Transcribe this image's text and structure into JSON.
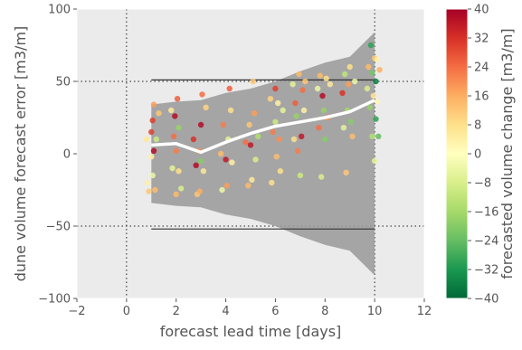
{
  "chart_data": {
    "type": "scatter",
    "title": "",
    "xlabel": "forecast lead time [days]",
    "ylabel": "dune volume forecast error [m3/m]",
    "xlim": [
      -2,
      12
    ],
    "ylim": [
      -100,
      100
    ],
    "xticks": [
      -2,
      0,
      2,
      4,
      6,
      8,
      10,
      12
    ],
    "xtick_labels": [
      "−2",
      "0",
      "2",
      "4",
      "6",
      "8",
      "10",
      "12"
    ],
    "yticks": [
      -100,
      -50,
      0,
      50,
      100
    ],
    "ytick_labels": [
      "−100",
      "−50",
      "0",
      "50",
      "100"
    ],
    "grid": "dotted lines at x=0, x=10, y=-50, y=50",
    "background": "#ebebeb",
    "band": {
      "name": "",
      "color": "#999999",
      "x": [
        1,
        2,
        3,
        4,
        5,
        6,
        7,
        8,
        9,
        10
      ],
      "upper": [
        34,
        36,
        37,
        42,
        45,
        50,
        57,
        63,
        67,
        84
      ],
      "lower": [
        -34,
        -36,
        -37,
        -42,
        -45,
        -50,
        -57,
        -63,
        -67,
        -84
      ]
    },
    "mean_line": {
      "name": "",
      "color": "#ffffff",
      "x": [
        1,
        2,
        3,
        4,
        5,
        6,
        7,
        8,
        9,
        10
      ],
      "y": [
        6,
        7,
        1,
        8,
        14,
        19,
        22,
        25,
        29,
        37
      ]
    },
    "hlines": [
      {
        "y": 51,
        "x_range": [
          1,
          10
        ],
        "color": "#333333"
      },
      {
        "y": -52,
        "x_range": [
          1,
          10
        ],
        "color": "#333333"
      }
    ],
    "points": [
      {
        "x": 0.8,
        "y": 10,
        "c": 6
      },
      {
        "x": 0.85,
        "y": -20,
        "c": 4
      },
      {
        "x": 0.9,
        "y": -26,
        "c": 12
      },
      {
        "x": 1.0,
        "y": 15,
        "c": 30
      },
      {
        "x": 1.0,
        "y": -2,
        "c": 4
      },
      {
        "x": 1.05,
        "y": 23,
        "c": 30
      },
      {
        "x": 1.05,
        "y": -15,
        "c": -4
      },
      {
        "x": 1.1,
        "y": 34,
        "c": 18
      },
      {
        "x": 1.1,
        "y": 2,
        "c": 38
      },
      {
        "x": 1.15,
        "y": -25,
        "c": 14
      },
      {
        "x": 1.2,
        "y": 10,
        "c": -10
      },
      {
        "x": 1.3,
        "y": 28,
        "c": 12
      },
      {
        "x": 1.8,
        "y": 30,
        "c": 6
      },
      {
        "x": 1.85,
        "y": -10,
        "c": -6
      },
      {
        "x": 1.9,
        "y": 12,
        "c": 24
      },
      {
        "x": 1.95,
        "y": 26,
        "c": 38
      },
      {
        "x": 2.0,
        "y": 2,
        "c": 22
      },
      {
        "x": 2.0,
        "y": -28,
        "c": 14
      },
      {
        "x": 2.05,
        "y": 38,
        "c": 26
      },
      {
        "x": 2.1,
        "y": -12,
        "c": 8
      },
      {
        "x": 2.1,
        "y": 18,
        "c": -18
      },
      {
        "x": 2.2,
        "y": -24,
        "c": -8
      },
      {
        "x": 2.7,
        "y": 10,
        "c": 32
      },
      {
        "x": 2.8,
        "y": -8,
        "c": 38
      },
      {
        "x": 2.85,
        "y": -28,
        "c": 12
      },
      {
        "x": 2.9,
        "y": 2,
        "c": 20
      },
      {
        "x": 2.95,
        "y": -26,
        "c": 16
      },
      {
        "x": 3.0,
        "y": 20,
        "c": 38
      },
      {
        "x": 3.0,
        "y": -5,
        "c": -20
      },
      {
        "x": 3.05,
        "y": 41,
        "c": 24
      },
      {
        "x": 3.1,
        "y": -12,
        "c": 6
      },
      {
        "x": 3.2,
        "y": 32,
        "c": 10
      },
      {
        "x": 3.8,
        "y": 0,
        "c": 14
      },
      {
        "x": 3.85,
        "y": -25,
        "c": -4
      },
      {
        "x": 3.9,
        "y": 20,
        "c": 22
      },
      {
        "x": 4.0,
        "y": -4,
        "c": 36
      },
      {
        "x": 4.05,
        "y": -22,
        "c": 18
      },
      {
        "x": 4.1,
        "y": 10,
        "c": -6
      },
      {
        "x": 4.15,
        "y": 45,
        "c": 26
      },
      {
        "x": 4.2,
        "y": 30,
        "c": 8
      },
      {
        "x": 4.25,
        "y": -6,
        "c": 4
      },
      {
        "x": 4.8,
        "y": 8,
        "c": 24
      },
      {
        "x": 4.9,
        "y": -22,
        "c": 14
      },
      {
        "x": 4.95,
        "y": 20,
        "c": 12
      },
      {
        "x": 5.0,
        "y": 6,
        "c": 36
      },
      {
        "x": 5.05,
        "y": -18,
        "c": 6
      },
      {
        "x": 5.1,
        "y": 50,
        "c": 12
      },
      {
        "x": 5.15,
        "y": 28,
        "c": 18
      },
      {
        "x": 5.2,
        "y": -4,
        "c": -8
      },
      {
        "x": 5.3,
        "y": 12,
        "c": -14
      },
      {
        "x": 5.8,
        "y": 38,
        "c": 10
      },
      {
        "x": 5.85,
        "y": -20,
        "c": 8
      },
      {
        "x": 5.9,
        "y": 15,
        "c": 22
      },
      {
        "x": 6.0,
        "y": 22,
        "c": -10
      },
      {
        "x": 6.0,
        "y": 45,
        "c": 30
      },
      {
        "x": 6.05,
        "y": -2,
        "c": 14
      },
      {
        "x": 6.1,
        "y": 35,
        "c": 4
      },
      {
        "x": 6.15,
        "y": 10,
        "c": 20
      },
      {
        "x": 6.2,
        "y": -12,
        "c": 8
      },
      {
        "x": 6.3,
        "y": 30,
        "c": -6
      },
      {
        "x": 6.7,
        "y": 48,
        "c": -6
      },
      {
        "x": 6.75,
        "y": 10,
        "c": 8
      },
      {
        "x": 6.8,
        "y": 35,
        "c": 26
      },
      {
        "x": 6.85,
        "y": 26,
        "c": -18
      },
      {
        "x": 6.9,
        "y": 2,
        "c": 22
      },
      {
        "x": 6.95,
        "y": 55,
        "c": 14
      },
      {
        "x": 7.0,
        "y": -15,
        "c": -10
      },
      {
        "x": 7.05,
        "y": 12,
        "c": 36
      },
      {
        "x": 7.1,
        "y": 44,
        "c": 24
      },
      {
        "x": 7.15,
        "y": 30,
        "c": 4
      },
      {
        "x": 7.2,
        "y": 50,
        "c": 12
      },
      {
        "x": 7.7,
        "y": 45,
        "c": -4
      },
      {
        "x": 7.75,
        "y": 18,
        "c": 24
      },
      {
        "x": 7.8,
        "y": 54,
        "c": 14
      },
      {
        "x": 7.85,
        "y": -16,
        "c": -8
      },
      {
        "x": 7.9,
        "y": 40,
        "c": 38
      },
      {
        "x": 7.95,
        "y": 30,
        "c": -18
      },
      {
        "x": 8.0,
        "y": 10,
        "c": -20
      },
      {
        "x": 8.05,
        "y": 52,
        "c": 8
      },
      {
        "x": 8.1,
        "y": 25,
        "c": 20
      },
      {
        "x": 8.2,
        "y": 48,
        "c": 6
      },
      {
        "x": 8.7,
        "y": 42,
        "c": 32
      },
      {
        "x": 8.75,
        "y": 18,
        "c": -6
      },
      {
        "x": 8.8,
        "y": 55,
        "c": -12
      },
      {
        "x": 8.85,
        "y": -13,
        "c": 12
      },
      {
        "x": 8.9,
        "y": 30,
        "c": -16
      },
      {
        "x": 8.95,
        "y": 48,
        "c": 18
      },
      {
        "x": 9.0,
        "y": 60,
        "c": 8
      },
      {
        "x": 9.05,
        "y": 22,
        "c": -20
      },
      {
        "x": 9.1,
        "y": 12,
        "c": 14
      },
      {
        "x": 9.2,
        "y": 50,
        "c": -4
      },
      {
        "x": 9.7,
        "y": 45,
        "c": -8
      },
      {
        "x": 9.75,
        "y": 60,
        "c": 14
      },
      {
        "x": 9.8,
        "y": 32,
        "c": -18
      },
      {
        "x": 9.85,
        "y": 75,
        "c": -30
      },
      {
        "x": 9.9,
        "y": 12,
        "c": -14
      },
      {
        "x": 9.9,
        "y": 56,
        "c": -22
      },
      {
        "x": 9.95,
        "y": 40,
        "c": 6
      },
      {
        "x": 10.0,
        "y": -5,
        "c": -6
      },
      {
        "x": 10.0,
        "y": 66,
        "c": 12
      },
      {
        "x": 10.05,
        "y": 24,
        "c": -30
      },
      {
        "x": 10.05,
        "y": 50,
        "c": -36
      },
      {
        "x": 10.1,
        "y": 36,
        "c": 2
      },
      {
        "x": 10.1,
        "y": 65,
        "c": 4
      },
      {
        "x": 10.15,
        "y": 12,
        "c": -24
      },
      {
        "x": 10.2,
        "y": 58,
        "c": 16
      }
    ],
    "colorbar": {
      "label": "forecasted volume change [m3/m]",
      "range": [
        -40,
        40
      ],
      "ticks": [
        40,
        32,
        24,
        16,
        8,
        0,
        -8,
        -16,
        -24,
        -32,
        -40
      ],
      "tick_labels": [
        "40",
        "32",
        "24",
        "16",
        "8",
        "0",
        "−8",
        "−16",
        "−24",
        "−32",
        "−40"
      ],
      "colormap": "RdYlGn",
      "stops": [
        "#a50026",
        "#d73027",
        "#f46d43",
        "#fdae61",
        "#fee08b",
        "#ffffbf",
        "#d9ef8b",
        "#a6d96a",
        "#66bd63",
        "#1a9850",
        "#006837"
      ]
    }
  }
}
